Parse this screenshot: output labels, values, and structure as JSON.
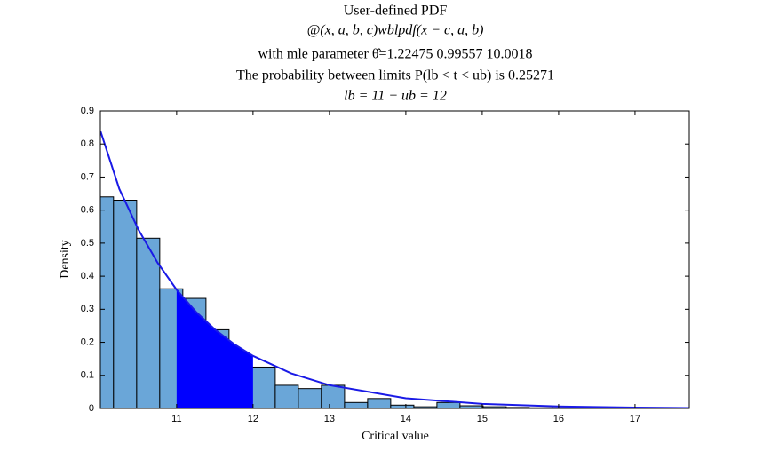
{
  "chart_data": {
    "type": "histogram",
    "title": "User-defined PDF",
    "subtitle": [
      "@(x, a, b, c)wblpdf(x − c, a, b)",
      "with mle parameter θ̂=1.22475 0.99557 10.0018",
      "The probability between limits P(lb < t < ub) is 0.25271",
      "lb =  11 − ub =  12"
    ],
    "xlabel": "Critical value",
    "ylabel": "Density",
    "bins": [
      9.872,
      10.174,
      10.477,
      10.779,
      11.081,
      11.384,
      11.686,
      11.988,
      12.291,
      12.593,
      12.895,
      13.198,
      13.5,
      13.802,
      14.105,
      14.407,
      14.709,
      15.012,
      15.314,
      15.616,
      15.919,
      16.221,
      16.523,
      16.826,
      17.128,
      17.43
    ],
    "counts": [
      0.64,
      0.63,
      0.515,
      0.362,
      0.333,
      0.238,
      0.15,
      0.125,
      0.07,
      0.06,
      0.07,
      0.018,
      0.03,
      0.01,
      0.005,
      0.018,
      0.008,
      0.005,
      0.003,
      0.002,
      0.002,
      0.001,
      0.001,
      0.001,
      0.001
    ],
    "color": "#6aa6d8",
    "edgecolor": "#000000",
    "curve": {
      "x": [
        10.0018,
        10.25,
        10.5,
        10.75,
        11,
        11.25,
        11.5,
        11.75,
        12,
        12.5,
        13,
        14,
        15,
        16,
        17,
        17.71
      ],
      "values": [
        0.84,
        0.664,
        0.541,
        0.441,
        0.359,
        0.293,
        0.239,
        0.195,
        0.159,
        0.106,
        0.0704,
        0.031,
        0.0137,
        0.0061,
        0.0027,
        0.0015
      ],
      "color": "#1a1ae6"
    },
    "shade": {
      "range": [
        11,
        12
      ],
      "color": "#0000ff"
    },
    "xlim": [
      10.0018,
      17.71
    ],
    "xticks": [
      11,
      12,
      13,
      14,
      15,
      16,
      17
    ],
    "ylim": [
      0,
      0.9
    ],
    "yticks": [
      0,
      0.1,
      0.2,
      0.3,
      0.4,
      0.5,
      0.6,
      0.7,
      0.8,
      0.9
    ]
  }
}
